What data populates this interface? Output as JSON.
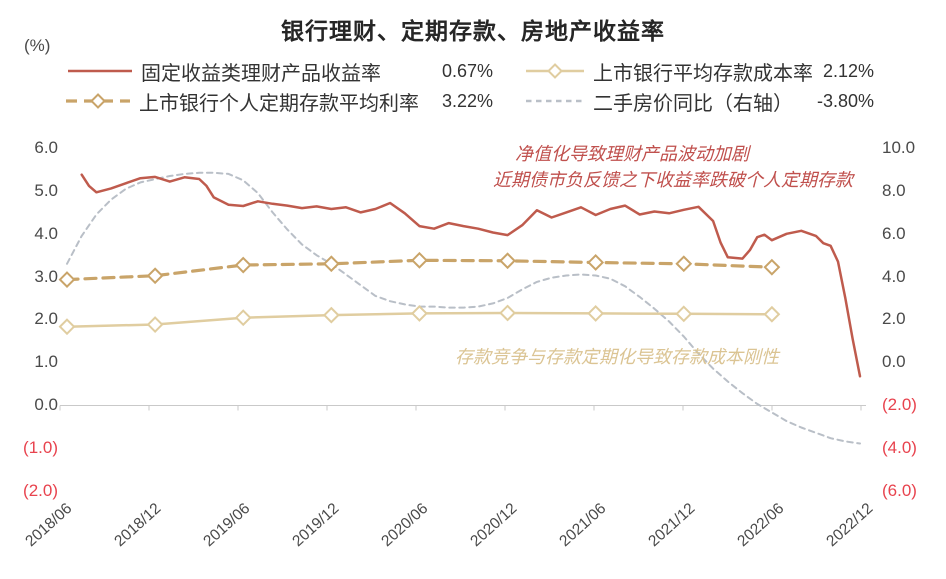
{
  "title": "银行理财、定期存款、房地产收益率",
  "unit_label": "(%)",
  "palette": {
    "wm_yield": "#bf5b4d",
    "time_deposit": "#c9a469",
    "deposit_cost": "#e0cda0",
    "home_price": "#b9bfc7",
    "negative_label": "#e8434e",
    "axis_line": "#c9c9c9",
    "annotation_red": "#c0504d",
    "annotation_tan": "#dbc493"
  },
  "annotations": {
    "red_line1": "净值化导致理财产品波动加剧",
    "red_line2": "近期债市负反馈之下收益率跌破个人定期存款",
    "tan_line": "存款竞争与存款定期化导致存款成本刚性"
  },
  "chart_data": {
    "type": "line",
    "title": "银行理财、定期存款、房地产收益率",
    "legend_position": "top",
    "grid": false,
    "x_categories": [
      "2018/06",
      "2018/12",
      "2019/06",
      "2019/12",
      "2020/06",
      "2020/12",
      "2021/06",
      "2021/12",
      "2022/06",
      "2022/12"
    ],
    "x_months_span": 54,
    "left_axis": {
      "unit": "%",
      "range": [
        -2,
        6
      ],
      "labels": [
        "6.0",
        "5.0",
        "4.0",
        "3.0",
        "2.0",
        "1.0",
        "0.0",
        "(1.0)",
        "(2.0)"
      ],
      "values": [
        6,
        5,
        4,
        3,
        2,
        1,
        0,
        -1,
        -2
      ]
    },
    "right_axis": {
      "unit": "%",
      "range": [
        -6,
        10
      ],
      "labels": [
        "10.0",
        "8.0",
        "6.0",
        "4.0",
        "2.0",
        "0.0",
        "(2.0)",
        "(4.0)",
        "(6.0)"
      ],
      "values": [
        10,
        8,
        6,
        4,
        2,
        0,
        -2,
        -4,
        -6
      ]
    },
    "series": [
      {
        "name": "固定收益类理财产品收益率",
        "latest": "0.67%",
        "axis": "left",
        "style": "solid",
        "marker": "none",
        "color": "#bf5b4d",
        "points": [
          [
            1,
            5.38
          ],
          [
            1.5,
            5.12
          ],
          [
            2,
            4.97
          ],
          [
            3,
            5.06
          ],
          [
            4,
            5.18
          ],
          [
            5,
            5.3
          ],
          [
            6,
            5.33
          ],
          [
            7,
            5.22
          ],
          [
            8,
            5.32
          ],
          [
            9,
            5.28
          ],
          [
            9.5,
            5.12
          ],
          [
            10,
            4.85
          ],
          [
            11,
            4.68
          ],
          [
            12,
            4.65
          ],
          [
            13,
            4.76
          ],
          [
            14,
            4.7
          ],
          [
            15,
            4.66
          ],
          [
            16,
            4.6
          ],
          [
            17,
            4.64
          ],
          [
            18,
            4.58
          ],
          [
            19,
            4.62
          ],
          [
            20,
            4.5
          ],
          [
            21,
            4.58
          ],
          [
            22,
            4.72
          ],
          [
            23,
            4.48
          ],
          [
            24,
            4.18
          ],
          [
            25,
            4.12
          ],
          [
            26,
            4.25
          ],
          [
            27,
            4.18
          ],
          [
            28,
            4.12
          ],
          [
            29,
            4.03
          ],
          [
            30,
            3.97
          ],
          [
            31,
            4.2
          ],
          [
            32,
            4.55
          ],
          [
            33,
            4.38
          ],
          [
            34,
            4.5
          ],
          [
            35,
            4.62
          ],
          [
            36,
            4.44
          ],
          [
            37,
            4.58
          ],
          [
            38,
            4.66
          ],
          [
            39,
            4.45
          ],
          [
            40,
            4.52
          ],
          [
            41,
            4.48
          ],
          [
            42,
            4.56
          ],
          [
            43,
            4.63
          ],
          [
            44,
            4.3
          ],
          [
            44.5,
            3.8
          ],
          [
            45,
            3.45
          ],
          [
            46,
            3.42
          ],
          [
            46.5,
            3.62
          ],
          [
            47,
            3.92
          ],
          [
            47.5,
            3.98
          ],
          [
            48,
            3.85
          ],
          [
            49,
            4.0
          ],
          [
            50,
            4.07
          ],
          [
            51,
            3.95
          ],
          [
            51.5,
            3.78
          ],
          [
            52,
            3.72
          ],
          [
            52.5,
            3.35
          ],
          [
            53,
            2.5
          ],
          [
            53.5,
            1.55
          ],
          [
            54,
            0.67
          ]
        ]
      },
      {
        "name": "上市银行个人定期存款平均利率",
        "latest": "3.22%",
        "axis": "left",
        "style": "long-dash",
        "marker": "diamond",
        "color": "#c9a469",
        "points": [
          [
            0,
            2.93
          ],
          [
            6,
            3.02
          ],
          [
            12,
            3.27
          ],
          [
            18,
            3.3
          ],
          [
            24,
            3.38
          ],
          [
            30,
            3.37
          ],
          [
            36,
            3.33
          ],
          [
            42,
            3.3
          ],
          [
            48,
            3.22
          ]
        ]
      },
      {
        "name": "上市银行平均存款成本率",
        "latest": "2.12%",
        "axis": "left",
        "style": "solid",
        "marker": "diamond",
        "color": "#e0cda0",
        "points": [
          [
            0,
            1.83
          ],
          [
            6,
            1.88
          ],
          [
            12,
            2.04
          ],
          [
            18,
            2.1
          ],
          [
            24,
            2.14
          ],
          [
            30,
            2.15
          ],
          [
            36,
            2.14
          ],
          [
            42,
            2.13
          ],
          [
            48,
            2.12
          ]
        ]
      },
      {
        "name": "二手房价同比（右轴）",
        "latest": "-3.80%",
        "axis": "right",
        "style": "short-dash",
        "marker": "none",
        "color": "#b9bfc7",
        "points": [
          [
            0,
            4.6
          ],
          [
            1,
            5.9
          ],
          [
            2,
            6.9
          ],
          [
            3,
            7.6
          ],
          [
            4,
            8.1
          ],
          [
            5,
            8.4
          ],
          [
            6,
            8.55
          ],
          [
            7,
            8.7
          ],
          [
            8,
            8.8
          ],
          [
            9,
            8.85
          ],
          [
            10,
            8.85
          ],
          [
            11,
            8.8
          ],
          [
            12,
            8.5
          ],
          [
            13,
            7.9
          ],
          [
            14,
            7.0
          ],
          [
            15,
            6.2
          ],
          [
            16,
            5.5
          ],
          [
            17,
            5.0
          ],
          [
            18,
            4.6
          ],
          [
            19,
            4.1
          ],
          [
            20,
            3.6
          ],
          [
            21,
            3.1
          ],
          [
            22,
            2.85
          ],
          [
            23,
            2.7
          ],
          [
            24,
            2.6
          ],
          [
            25,
            2.6
          ],
          [
            26,
            2.55
          ],
          [
            27,
            2.55
          ],
          [
            28,
            2.6
          ],
          [
            29,
            2.75
          ],
          [
            30,
            3.0
          ],
          [
            31,
            3.4
          ],
          [
            32,
            3.75
          ],
          [
            33,
            3.95
          ],
          [
            34,
            4.05
          ],
          [
            35,
            4.1
          ],
          [
            36,
            4.05
          ],
          [
            37,
            3.9
          ],
          [
            38,
            3.55
          ],
          [
            39,
            3.05
          ],
          [
            40,
            2.5
          ],
          [
            41,
            1.9
          ],
          [
            42,
            1.2
          ],
          [
            43,
            0.4
          ],
          [
            44,
            -0.3
          ],
          [
            45,
            -0.9
          ],
          [
            46,
            -1.45
          ],
          [
            47,
            -1.95
          ],
          [
            48,
            -2.35
          ],
          [
            49,
            -2.75
          ],
          [
            50,
            -3.05
          ],
          [
            51,
            -3.3
          ],
          [
            52,
            -3.55
          ],
          [
            53,
            -3.7
          ],
          [
            54,
            -3.8
          ]
        ]
      }
    ]
  }
}
